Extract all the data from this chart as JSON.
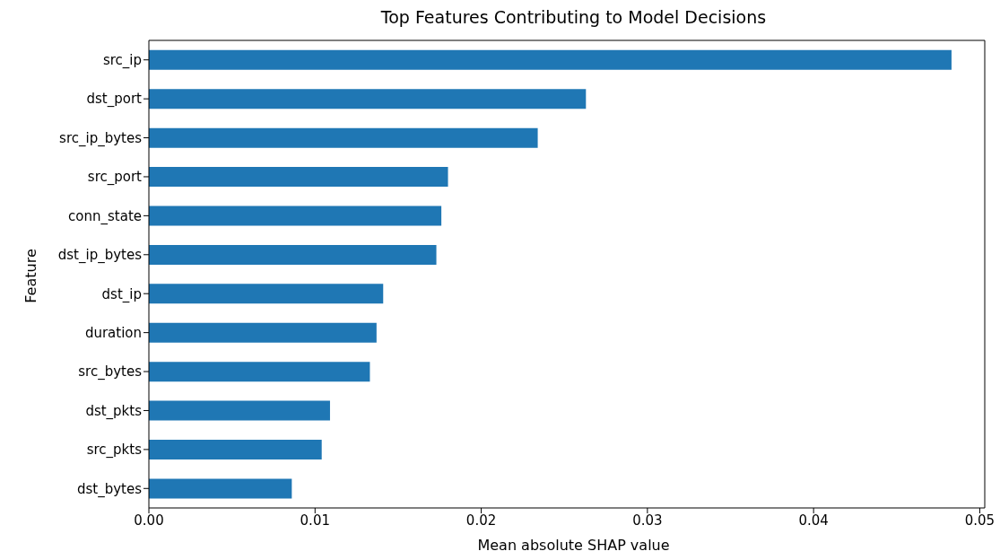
{
  "chart_data": {
    "type": "bar",
    "orientation": "horizontal",
    "title": "Top Features Contributing to Model Decisions",
    "xlabel": "Mean absolute SHAP value",
    "ylabel": "Feature",
    "categories": [
      "src_ip",
      "dst_port",
      "src_ip_bytes",
      "src_port",
      "conn_state",
      "dst_ip_bytes",
      "dst_ip",
      "duration",
      "src_bytes",
      "dst_pkts",
      "src_pkts",
      "dst_bytes"
    ],
    "values": [
      0.0483,
      0.0263,
      0.0234,
      0.018,
      0.0176,
      0.0173,
      0.0141,
      0.0137,
      0.0133,
      0.0109,
      0.0104,
      0.0086
    ],
    "color": "#1f77b4",
    "xlim": [
      0,
      0.0503
    ],
    "xticks": [
      {
        "value": 0,
        "label": "0.00"
      },
      {
        "value": 0.01,
        "label": "0.01"
      },
      {
        "value": 0.02,
        "label": "0.02"
      },
      {
        "value": 0.03,
        "label": "0.03"
      },
      {
        "value": 0.04,
        "label": "0.04"
      },
      {
        "value": 0.05,
        "label": "0.05"
      }
    ],
    "grid": false
  }
}
